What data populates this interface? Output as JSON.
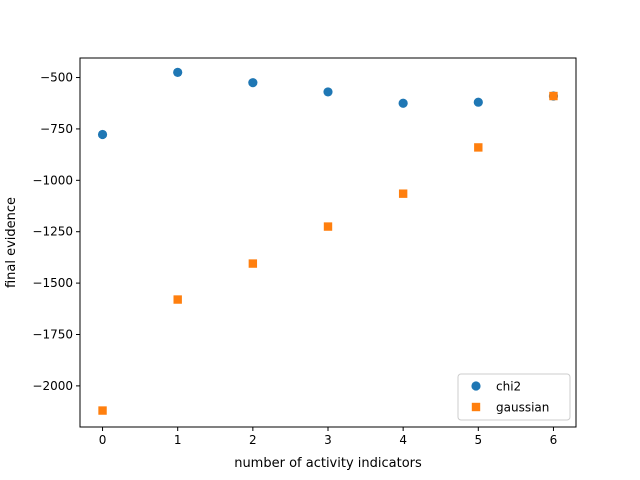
{
  "chart_data": {
    "type": "scatter",
    "x_ticks": [
      "0",
      "1",
      "2",
      "3",
      "4",
      "5",
      "6"
    ],
    "y_ticks": [
      {
        "value": -500,
        "label": "−500"
      },
      {
        "value": -750,
        "label": "−750"
      },
      {
        "value": -1000,
        "label": "−1000"
      },
      {
        "value": -1250,
        "label": "−1250"
      },
      {
        "value": -1500,
        "label": "−1500"
      },
      {
        "value": -1750,
        "label": "−1750"
      },
      {
        "value": -2000,
        "label": "−2000"
      }
    ],
    "xlabel": "number of activity indicators",
    "ylabel": "final evidence",
    "xlim": [
      -0.3,
      6.3
    ],
    "ylim": [
      -2200,
      -405
    ],
    "grid": false,
    "legend_position": "lower-right",
    "series": [
      {
        "name": "chi2",
        "marker": "circle",
        "color": "#1f77b4",
        "x": [
          0,
          1,
          2,
          3,
          4,
          5,
          6
        ],
        "y": [
          -777,
          -475,
          -525,
          -570,
          -625,
          -620,
          -590
        ]
      },
      {
        "name": "gaussian",
        "marker": "square",
        "color": "#ff7f0e",
        "x": [
          0,
          1,
          2,
          3,
          4,
          5,
          6
        ],
        "y": [
          -2120,
          -1580,
          -1405,
          -1225,
          -1065,
          -840,
          -590
        ]
      }
    ]
  }
}
